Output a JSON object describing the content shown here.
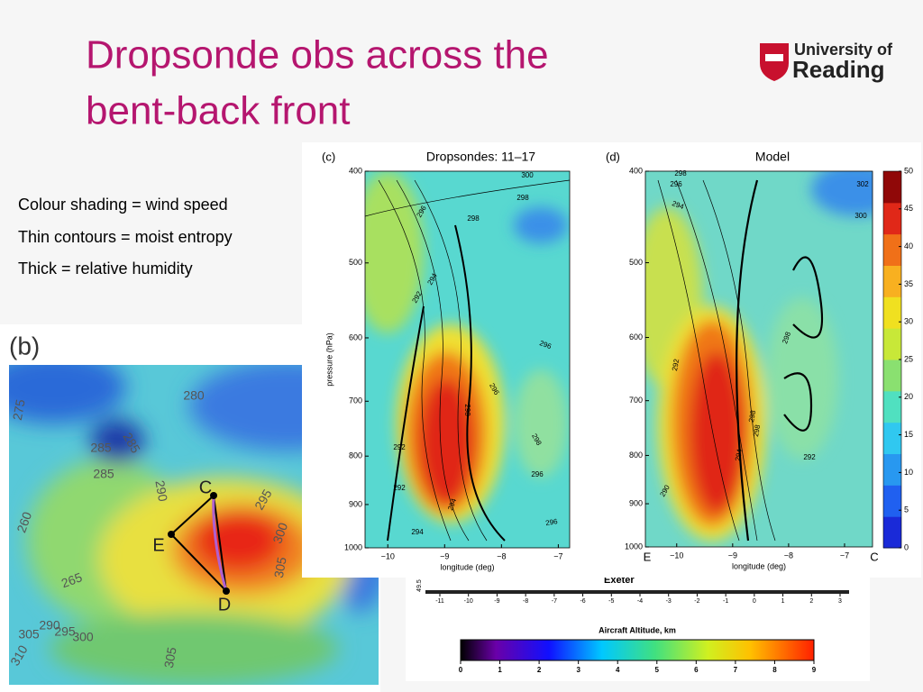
{
  "header": {
    "title_lines": [
      "Dropsonde obs across the",
      "bent-back front"
    ]
  },
  "logo": {
    "line1": "University of",
    "line2": "Reading"
  },
  "bullets": [
    "Colour shading = wind speed",
    "Thin contours = moist entropy",
    "Thick = relative humidity"
  ],
  "panel_c": {
    "label": "(c)",
    "title": "Dropsondes: 11–17",
    "ylabel": "pressure (hPa)",
    "xlabel": "longitude (deg)",
    "ylim": [
      400,
      1000
    ],
    "yticks": [
      400,
      500,
      600,
      700,
      800,
      900,
      1000
    ],
    "log_y": true,
    "xlim": [
      -10.4,
      -6.8
    ],
    "xticks": [
      {
        "value": -10,
        "label": "−10"
      },
      {
        "value": -9,
        "label": "−9"
      },
      {
        "value": -8,
        "label": "−8"
      },
      {
        "value": -7,
        "label": "−7"
      }
    ],
    "contour_labels": [
      "300",
      "298",
      "296",
      "298",
      "292",
      "294",
      "296",
      "296",
      "298",
      "298",
      "292",
      "292",
      "294",
      "296",
      "294",
      "296"
    ]
  },
  "panel_d": {
    "label": "(d)",
    "title": "Model",
    "xlabel": "longitude (deg)",
    "ylim": [
      400,
      1000
    ],
    "yticks": [
      400,
      500,
      600,
      700,
      800,
      900,
      1000
    ],
    "log_y": true,
    "xlim": [
      -10.56,
      -6.5
    ],
    "xticks": [
      {
        "value": -10,
        "label": "−10"
      },
      {
        "value": -9,
        "label": "−9"
      },
      {
        "value": -8,
        "label": "−8"
      },
      {
        "value": -7,
        "label": "−7"
      }
    ],
    "end_labels": [
      "E",
      "C"
    ],
    "contour_labels": [
      "298",
      "296",
      "294",
      "302",
      "300",
      "298",
      "292",
      "298",
      "294",
      "290",
      "298",
      "292"
    ]
  },
  "colorbar": {
    "ylim": [
      0,
      50
    ],
    "yticks": [
      0,
      5,
      10,
      15,
      20,
      25,
      30,
      35,
      40,
      45,
      50
    ]
  },
  "panel_b": {
    "label": "(b)",
    "points": [
      "C",
      "E",
      "D"
    ],
    "contour_labels": [
      "275",
      "280",
      "285",
      "285",
      "285",
      "290",
      "260",
      "265",
      "295",
      "300",
      "305",
      "290",
      "295",
      "300",
      "305",
      "310",
      "305"
    ]
  },
  "aircraft": {
    "place": "Exeter",
    "lat_label": "49.5",
    "xticks": [
      -11,
      -10,
      -9,
      -8,
      -7,
      -6,
      -5,
      -4,
      -3,
      -2,
      -1,
      0,
      1,
      2,
      3
    ],
    "cbar_title": "Aircraft Altitude, km",
    "cbar_lim": [
      0,
      9
    ],
    "cbar_ticks": [
      0,
      1,
      2,
      3,
      4,
      5,
      6,
      7,
      8,
      9
    ]
  }
}
